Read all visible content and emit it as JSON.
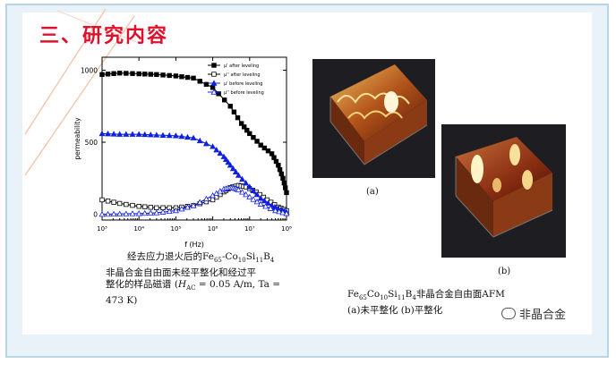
{
  "title": "三、研究内容",
  "caption_left": {
    "line1_prefix": "经去应力退火后的Fe",
    "sub1": "65",
    "mid1": "-Co",
    "sub2": "10",
    "mid2": "Si",
    "sub3": "11",
    "mid3": "B",
    "sub4": "4",
    "line2": "非晶合金自由面未经平整化和经过平",
    "line3": "整化的样品磁谱 (",
    "h_sym": "H",
    "h_sub": "AC",
    "line3_rest": " = 0.05 A/m, Ta =",
    "line4": "473 K)"
  },
  "afm_labels": {
    "a": "(a)",
    "b": "(b)"
  },
  "caption_right": {
    "p1": "Fe",
    "s1": "65",
    "p2": "Co",
    "s2": "10",
    "p3": "Si",
    "s3": "11",
    "p4": "B",
    "s4": "4",
    "p5": "非晶合金自由面AFM",
    "line2": "(a)未平整化  (b)平整化"
  },
  "watermark": "非晶合金",
  "chart_data": {
    "type": "line",
    "xlabel": "f (Hz)",
    "ylabel": "permeability",
    "xscale": "log",
    "xlim": [
      1000,
      100000000
    ],
    "ylim": [
      -40,
      1090
    ],
    "x_tick_labels": [
      "10³",
      "10⁴",
      "10⁵",
      "10⁶",
      "10⁷",
      "10⁸"
    ],
    "y_ticks": [
      0,
      500,
      1000
    ],
    "legend_position": "top-right",
    "series": [
      {
        "name": "μ' after leveling",
        "color": "#000000",
        "marker": "square-filled",
        "x": [
          1000,
          3000,
          10000,
          30000,
          100000,
          300000,
          1000000,
          3000000,
          6000000,
          10000000,
          20000000,
          40000000,
          60000000,
          80000000,
          100000000
        ],
        "y": [
          970,
          980,
          975,
          970,
          960,
          945,
          880,
          750,
          630,
          560,
          480,
          420,
          340,
          250,
          150
        ]
      },
      {
        "name": "μ'' after leveling",
        "color": "#000000",
        "marker": "square-open",
        "x": [
          1000,
          3000,
          10000,
          30000,
          100000,
          300000,
          1000000,
          2000000,
          3000000,
          5000000,
          8000000,
          15000000,
          30000000,
          60000000,
          100000000
        ],
        "y": [
          100,
          75,
          55,
          45,
          45,
          60,
          100,
          155,
          185,
          200,
          190,
          155,
          100,
          50,
          25
        ]
      },
      {
        "name": "μ' before leveling",
        "color": "#1020e0",
        "marker": "triangle-filled",
        "x": [
          1000,
          3000,
          10000,
          30000,
          100000,
          300000,
          1000000,
          2000000,
          3000000,
          5000000,
          10000000,
          20000000,
          40000000,
          70000000,
          100000000
        ],
        "y": [
          560,
          555,
          555,
          550,
          545,
          530,
          470,
          400,
          340,
          270,
          190,
          110,
          60,
          30,
          15
        ]
      },
      {
        "name": "μ'' before leveling",
        "color": "#1020e0",
        "marker": "triangle-open",
        "x": [
          1000,
          3000,
          10000,
          30000,
          100000,
          300000,
          1000000,
          2000000,
          3000000,
          4000000,
          5000000,
          10000000,
          20000000,
          50000000,
          100000000
        ],
        "y": [
          0,
          2,
          5,
          10,
          25,
          60,
          130,
          175,
          185,
          180,
          170,
          120,
          70,
          25,
          5
        ]
      }
    ]
  }
}
